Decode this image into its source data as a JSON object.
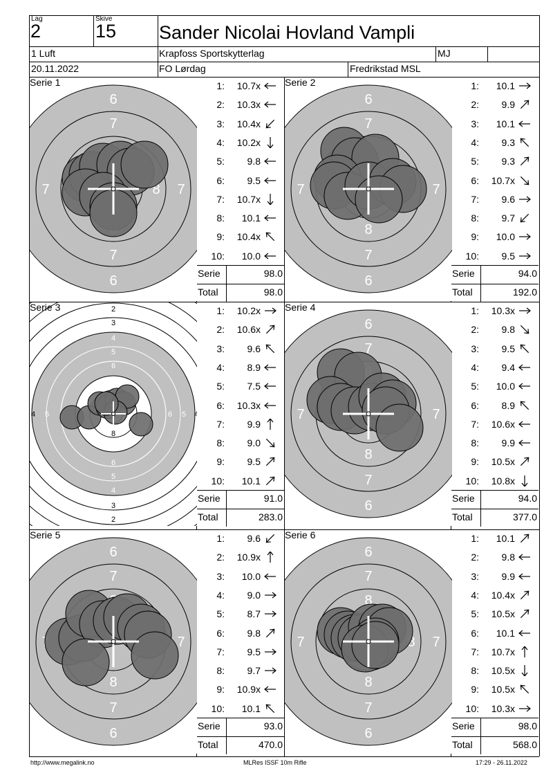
{
  "header": {
    "lag_label": "Lag",
    "lag_value": "2",
    "skive_label": "Skive",
    "skive_value": "15",
    "shooter_name": "Sander Nicolai Hovland Vampli",
    "class": "1 Luft",
    "club": "Krapfoss Sportskytterlag",
    "class_code": "MJ",
    "date": "20.11.2022",
    "event": "FO Lørdag",
    "location": "Fredrikstad MSL"
  },
  "series": [
    {
      "label": "Serie 1",
      "target_type": "standard",
      "shots": [
        {
          "n": "1:",
          "v": "10.7x",
          "dir": "W"
        },
        {
          "n": "2:",
          "v": "10.3x",
          "dir": "W"
        },
        {
          "n": "3:",
          "v": "10.4x",
          "dir": "SW"
        },
        {
          "n": "4:",
          "v": "10.2x",
          "dir": "S"
        },
        {
          "n": "5:",
          "v": "9.8",
          "dir": "W"
        },
        {
          "n": "6:",
          "v": "9.5",
          "dir": "W"
        },
        {
          "n": "7:",
          "v": "10.7x",
          "dir": "S"
        },
        {
          "n": "8:",
          "v": "10.1",
          "dir": "W"
        },
        {
          "n": "9:",
          "v": "10.4x",
          "dir": "NW"
        },
        {
          "n": "10:",
          "v": "10.0",
          "dir": "W"
        }
      ],
      "serie_label": "Serie",
      "serie_value": "98.0",
      "total_label": "Total",
      "total_value": "98.0"
    },
    {
      "label": "Serie 2",
      "target_type": "standard",
      "shots": [
        {
          "n": "1:",
          "v": "10.1",
          "dir": "E"
        },
        {
          "n": "2:",
          "v": "9.9",
          "dir": "NE"
        },
        {
          "n": "3:",
          "v": "10.1",
          "dir": "W"
        },
        {
          "n": "4:",
          "v": "9.3",
          "dir": "NW"
        },
        {
          "n": "5:",
          "v": "9.3",
          "dir": "NE"
        },
        {
          "n": "6:",
          "v": "10.7x",
          "dir": "SE"
        },
        {
          "n": "7:",
          "v": "9.6",
          "dir": "E"
        },
        {
          "n": "8:",
          "v": "9.7",
          "dir": "SW"
        },
        {
          "n": "9:",
          "v": "10.0",
          "dir": "E"
        },
        {
          "n": "10:",
          "v": "9.5",
          "dir": "E"
        }
      ],
      "serie_label": "Serie",
      "serie_value": "94.0",
      "total_label": "Total",
      "total_value": "192.0"
    },
    {
      "label": "Serie 3",
      "target_type": "zoomed",
      "shots": [
        {
          "n": "1:",
          "v": "10.2x",
          "dir": "E"
        },
        {
          "n": "2:",
          "v": "10.6x",
          "dir": "NE"
        },
        {
          "n": "3:",
          "v": "9.6",
          "dir": "NW"
        },
        {
          "n": "4:",
          "v": "8.9",
          "dir": "W"
        },
        {
          "n": "5:",
          "v": "7.5",
          "dir": "W"
        },
        {
          "n": "6:",
          "v": "10.3x",
          "dir": "W"
        },
        {
          "n": "7:",
          "v": "9.9",
          "dir": "N"
        },
        {
          "n": "8:",
          "v": "9.0",
          "dir": "SE"
        },
        {
          "n": "9:",
          "v": "9.5",
          "dir": "NE"
        },
        {
          "n": "10:",
          "v": "10.1",
          "dir": "NE"
        }
      ],
      "serie_label": "Serie",
      "serie_value": "91.0",
      "total_label": "Total",
      "total_value": "283.0"
    },
    {
      "label": "Serie 4",
      "target_type": "standard",
      "shots": [
        {
          "n": "1:",
          "v": "10.3x",
          "dir": "E"
        },
        {
          "n": "2:",
          "v": "9.8",
          "dir": "SE"
        },
        {
          "n": "3:",
          "v": "9.5",
          "dir": "NW"
        },
        {
          "n": "4:",
          "v": "9.4",
          "dir": "W"
        },
        {
          "n": "5:",
          "v": "10.0",
          "dir": "W"
        },
        {
          "n": "6:",
          "v": "8.9",
          "dir": "NW"
        },
        {
          "n": "7:",
          "v": "10.6x",
          "dir": "W"
        },
        {
          "n": "8:",
          "v": "9.9",
          "dir": "W"
        },
        {
          "n": "9:",
          "v": "10.5x",
          "dir": "NE"
        },
        {
          "n": "10:",
          "v": "10.8x",
          "dir": "S"
        }
      ],
      "serie_label": "Serie",
      "serie_value": "94.0",
      "total_label": "Total",
      "total_value": "377.0"
    },
    {
      "label": "Serie 5",
      "target_type": "standard",
      "shots": [
        {
          "n": "1:",
          "v": "9.6",
          "dir": "SW"
        },
        {
          "n": "2:",
          "v": "10.9x",
          "dir": "N"
        },
        {
          "n": "3:",
          "v": "10.0",
          "dir": "W"
        },
        {
          "n": "4:",
          "v": "9.0",
          "dir": "E"
        },
        {
          "n": "5:",
          "v": "8.7",
          "dir": "E"
        },
        {
          "n": "6:",
          "v": "9.8",
          "dir": "NE"
        },
        {
          "n": "7:",
          "v": "9.5",
          "dir": "E"
        },
        {
          "n": "8:",
          "v": "9.7",
          "dir": "E"
        },
        {
          "n": "9:",
          "v": "10.9x",
          "dir": "W"
        },
        {
          "n": "10:",
          "v": "10.1",
          "dir": "NW"
        }
      ],
      "serie_label": "Serie",
      "serie_value": "93.0",
      "total_label": "Total",
      "total_value": "470.0"
    },
    {
      "label": "Serie 6",
      "target_type": "standard",
      "shots": [
        {
          "n": "1:",
          "v": "10.1",
          "dir": "NE"
        },
        {
          "n": "2:",
          "v": "9.8",
          "dir": "W"
        },
        {
          "n": "3:",
          "v": "9.9",
          "dir": "W"
        },
        {
          "n": "4:",
          "v": "10.4x",
          "dir": "NE"
        },
        {
          "n": "5:",
          "v": "10.5x",
          "dir": "NE"
        },
        {
          "n": "6:",
          "v": "10.1",
          "dir": "W"
        },
        {
          "n": "7:",
          "v": "10.7x",
          "dir": "N"
        },
        {
          "n": "8:",
          "v": "10.5x",
          "dir": "S"
        },
        {
          "n": "9:",
          "v": "10.5x",
          "dir": "NW"
        },
        {
          "n": "10:",
          "v": "10.3x",
          "dir": "E"
        }
      ],
      "serie_label": "Serie",
      "serie_value": "98.0",
      "total_label": "Total",
      "total_value": "568.0"
    }
  ],
  "footer": {
    "url": "http://www.megalink.no",
    "software": "MLRes ISSF 10m Rifle",
    "timestamp": "17:29 - 26.11.2022"
  }
}
